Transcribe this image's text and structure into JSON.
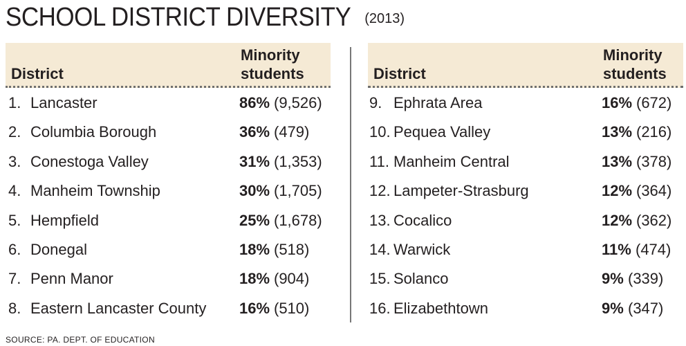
{
  "title": "SCHOOL DISTRICT DIVERSITY",
  "year": "(2013)",
  "columns": {
    "district": "District",
    "minority_line1": "Minority",
    "minority_line2": "students"
  },
  "source": "SOURCE: PA. DEPT. OF EDUCATION",
  "chart_data": {
    "type": "table",
    "title": "SCHOOL DISTRICT DIVERSITY",
    "subtitle": "(2013)",
    "headers": [
      "District",
      "Minority students"
    ],
    "rows": [
      {
        "rank": "1.",
        "district": "Lancaster",
        "pct": "86%",
        "count": "(9,526)"
      },
      {
        "rank": "2.",
        "district": "Columbia Borough",
        "pct": "36%",
        "count": "(479)"
      },
      {
        "rank": "3.",
        "district": "Conestoga Valley",
        "pct": "31%",
        "count": "(1,353)"
      },
      {
        "rank": "4.",
        "district": "Manheim Township",
        "pct": "30%",
        "count": "(1,705)"
      },
      {
        "rank": "5.",
        "district": "Hempfield",
        "pct": "25%",
        "count": "(1,678)"
      },
      {
        "rank": "6.",
        "district": "Donegal",
        "pct": "18%",
        "count": "(518)"
      },
      {
        "rank": "7.",
        "district": "Penn Manor",
        "pct": "18%",
        "count": "(904)"
      },
      {
        "rank": "8.",
        "district": "Eastern Lancaster County",
        "pct": "16%",
        "count": "(510)"
      },
      {
        "rank": "9.",
        "district": "Ephrata Area",
        "pct": "16%",
        "count": "(672)"
      },
      {
        "rank": "10.",
        "district": "Pequea Valley",
        "pct": "13%",
        "count": "(216)"
      },
      {
        "rank": "11.",
        "district": "Manheim Central",
        "pct": "13%",
        "count": "(378)"
      },
      {
        "rank": "12.",
        "district": "Lampeter-Strasburg",
        "pct": "12%",
        "count": "(364)"
      },
      {
        "rank": "13.",
        "district": "Cocalico",
        "pct": "12%",
        "count": "(362)"
      },
      {
        "rank": "14.",
        "district": "Warwick",
        "pct": "11%",
        "count": "(474)"
      },
      {
        "rank": "15.",
        "district": "Solanco",
        "pct": "9%",
        "count": "(339)"
      },
      {
        "rank": "16.",
        "district": "Elizabethtown",
        "pct": "9%",
        "count": "(347)"
      }
    ]
  }
}
